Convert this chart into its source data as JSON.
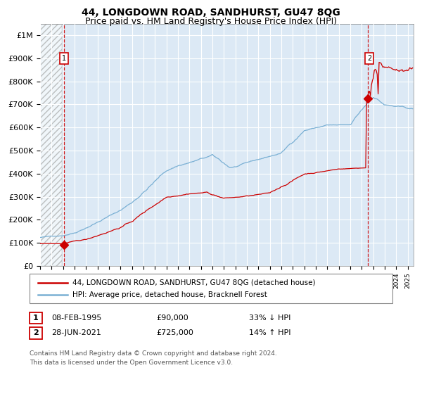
{
  "title": "44, LONGDOWN ROAD, SANDHURST, GU47 8QG",
  "subtitle": "Price paid vs. HM Land Registry's House Price Index (HPI)",
  "ylabel_ticks": [
    "£0",
    "£100K",
    "£200K",
    "£300K",
    "£400K",
    "£500K",
    "£600K",
    "£700K",
    "£800K",
    "£900K",
    "£1M"
  ],
  "ytick_values": [
    0,
    100000,
    200000,
    300000,
    400000,
    500000,
    600000,
    700000,
    800000,
    900000,
    1000000
  ],
  "ylim": [
    0,
    1050000
  ],
  "xlim_start": 1993.0,
  "xlim_end": 2025.5,
  "background_color": "#dce9f5",
  "hatch_region_end": 1994.87,
  "vline1_x": 1995.1,
  "vline2_x": 2021.5,
  "marker1_x": 1995.1,
  "marker1_y": 90000,
  "marker2_x": 2021.5,
  "marker2_y": 725000,
  "red_line_color": "#cc0000",
  "blue_line_color": "#7ab0d4",
  "legend_label_red": "44, LONGDOWN ROAD, SANDHURST, GU47 8QG (detached house)",
  "legend_label_blue": "HPI: Average price, detached house, Bracknell Forest",
  "table_row1_num": "1",
  "table_row1_date": "08-FEB-1995",
  "table_row1_price": "£90,000",
  "table_row1_hpi": "33% ↓ HPI",
  "table_row2_num": "2",
  "table_row2_date": "28-JUN-2021",
  "table_row2_price": "£725,000",
  "table_row2_hpi": "14% ↑ HPI",
  "footer": "Contains HM Land Registry data © Crown copyright and database right 2024.\nThis data is licensed under the Open Government Licence v3.0.",
  "title_fontsize": 10,
  "subtitle_fontsize": 9,
  "axis_fontsize": 8
}
